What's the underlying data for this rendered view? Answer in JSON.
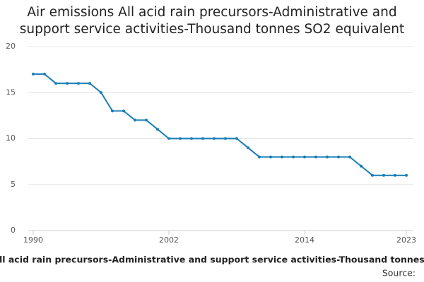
{
  "chart_data": {
    "type": "line",
    "title": "Air emissions All acid rain precursors-Administrative and support service activities-Thousand tonnes SO2 equivalent",
    "x_label": "All acid rain precursors-Administrative and support service activities-Thousand tonnes",
    "source": "Source:",
    "x": [
      1990,
      1991,
      1992,
      1993,
      1994,
      1995,
      1996,
      1997,
      1998,
      1999,
      2000,
      2001,
      2002,
      2003,
      2004,
      2005,
      2006,
      2007,
      2008,
      2009,
      2010,
      2011,
      2012,
      2013,
      2014,
      2015,
      2016,
      2017,
      2018,
      2019,
      2020,
      2021,
      2022,
      2023
    ],
    "series": [
      {
        "color": "#1a7db6",
        "values": [
          17,
          17,
          16,
          16,
          16,
          16,
          15,
          13,
          13,
          12,
          12,
          11,
          10,
          10,
          10,
          10,
          10,
          10,
          10,
          9,
          8,
          8,
          8,
          8,
          8,
          8,
          8,
          8,
          8,
          7,
          6,
          6,
          6,
          6
        ]
      }
    ],
    "xlim": [
      1990,
      2023
    ],
    "xticks": [
      1990,
      2002,
      2014,
      2023
    ],
    "ylim": [
      0,
      20
    ],
    "yticks": [
      0,
      5,
      10,
      15,
      20
    ],
    "grid": true
  }
}
